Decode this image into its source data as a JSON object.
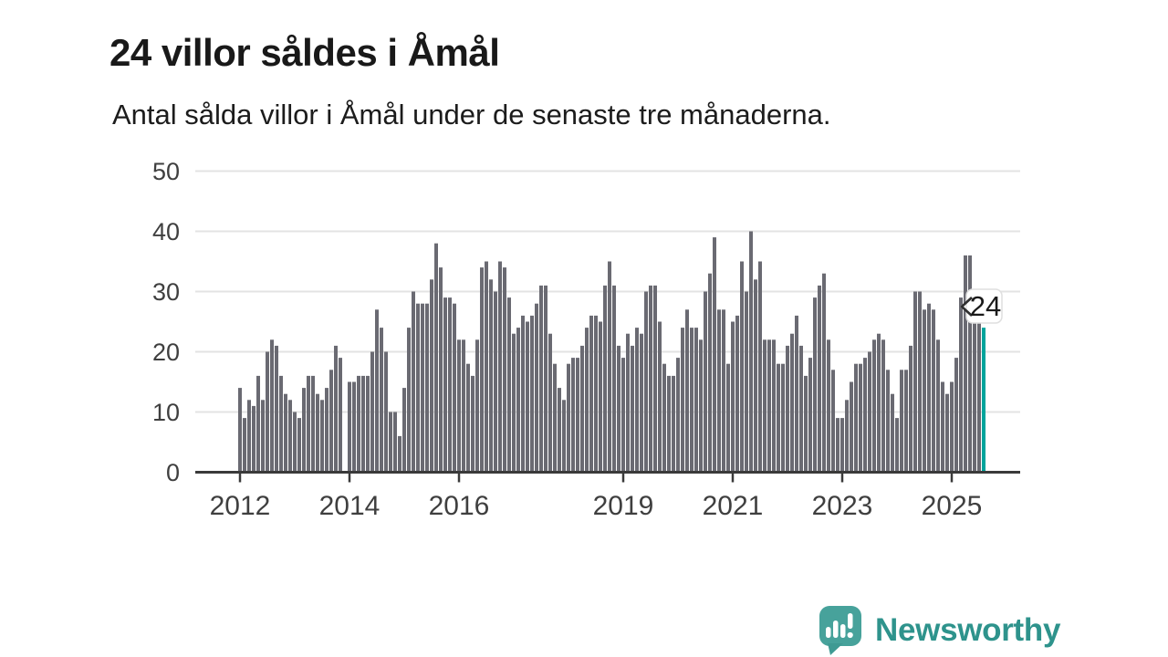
{
  "header": {
    "title": "24 villor såldes i Åmål",
    "subtitle": "Antal sålda villor i Åmål under de senaste tre månaderna."
  },
  "annotation": {
    "latest_value_label": "24"
  },
  "branding": {
    "name": "Newsworthy",
    "icon": "speech-bubble-bar-chart-icon",
    "text_color": "#2E938C",
    "bubble_color": "#47A29B"
  },
  "colors": {
    "bar": "#6A6A72",
    "highlight": "#00A49C",
    "grid": "#E3E3E3",
    "axis": "#3A3A3A",
    "tick_text": "#3F3F3F",
    "callout_bg": "#FFFFFF",
    "callout_border": "#DFDFDF",
    "callout_text": "#1A1A1A"
  },
  "chart_data": {
    "type": "bar",
    "title": "24 villor såldes i Åmål",
    "subtitle": "Antal sålda villor i Åmål under de senaste tre månaderna.",
    "x_start": "2012-01",
    "x_end": "2025-08",
    "x_tick_years": [
      2012,
      2014,
      2016,
      2019,
      2021,
      2023,
      2025
    ],
    "x_tick_labels": [
      "2012",
      "2014",
      "2016",
      "2019",
      "2021",
      "2023",
      "2025"
    ],
    "y_ticks": [
      0,
      10,
      20,
      30,
      40,
      50
    ],
    "ylim": [
      0,
      50
    ],
    "grid": true,
    "highlight_last": true,
    "latest_value": 24,
    "values_monthly": [
      {
        "year": 2012,
        "values": [
          14,
          9,
          12,
          11,
          16,
          12,
          20,
          22,
          21,
          16,
          13,
          12
        ]
      },
      {
        "year": 2013,
        "values": [
          10,
          9,
          14,
          16,
          16,
          13,
          12,
          14,
          17,
          21,
          19,
          null
        ]
      },
      {
        "year": 2014,
        "values": [
          15,
          15,
          16,
          16,
          16,
          20,
          27,
          24,
          20,
          10,
          10,
          6
        ]
      },
      {
        "year": 2015,
        "values": [
          14,
          24,
          30,
          28,
          28,
          28,
          32,
          38,
          34,
          29,
          29,
          28
        ]
      },
      {
        "year": 2016,
        "values": [
          22,
          22,
          18,
          16,
          22,
          34,
          35,
          32,
          30,
          35,
          34,
          29
        ]
      },
      {
        "year": 2017,
        "values": [
          23,
          24,
          26,
          25,
          26,
          28,
          31,
          31,
          23,
          18,
          14,
          12
        ]
      },
      {
        "year": 2018,
        "values": [
          18,
          19,
          19,
          21,
          24,
          26,
          26,
          25,
          31,
          35,
          31,
          21
        ]
      },
      {
        "year": 2019,
        "values": [
          19,
          23,
          21,
          24,
          23,
          30,
          31,
          31,
          25,
          18,
          16,
          16
        ]
      },
      {
        "year": 2020,
        "values": [
          19,
          24,
          27,
          24,
          24,
          22,
          30,
          33,
          39,
          27,
          27,
          18
        ]
      },
      {
        "year": 2021,
        "values": [
          25,
          26,
          35,
          30,
          40,
          32,
          35,
          22,
          22,
          22,
          18,
          18
        ]
      },
      {
        "year": 2022,
        "values": [
          21,
          23,
          26,
          21,
          16,
          19,
          29,
          31,
          33,
          22,
          17,
          9
        ]
      },
      {
        "year": 2023,
        "values": [
          9,
          12,
          15,
          18,
          18,
          19,
          20,
          22,
          23,
          22,
          17,
          13
        ]
      },
      {
        "year": 2024,
        "values": [
          9,
          17,
          17,
          21,
          30,
          30,
          27,
          28,
          27,
          22,
          15,
          13
        ]
      },
      {
        "year": 2025,
        "values": [
          15,
          19,
          29,
          36,
          36,
          26,
          26,
          24
        ]
      }
    ]
  }
}
